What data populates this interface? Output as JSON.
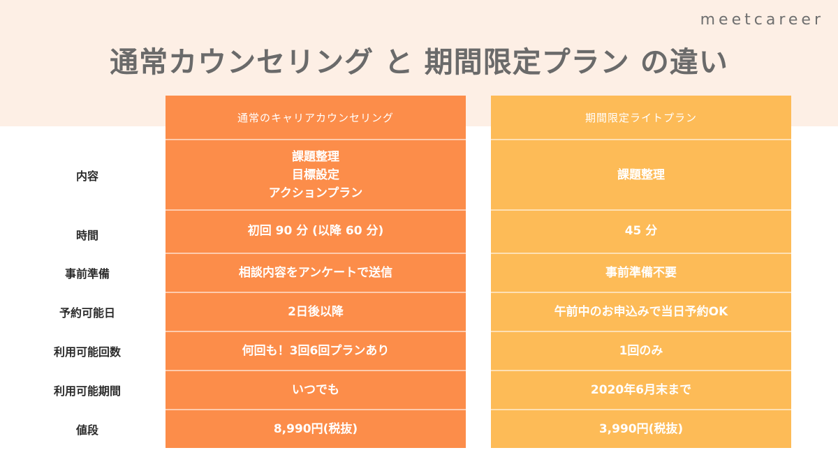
{
  "brand": "meetcareer",
  "title": "通常カウンセリング と 期間限定プラン の違い",
  "columns": {
    "normal": {
      "header": "通常のキャリアカウンセリング",
      "content": [
        "課題整理",
        "目標設定",
        "アクションプラン"
      ],
      "time": "初回 90 分 (以降 60 分)",
      "preparation": "相談内容をアンケートで送信",
      "booking_day": "2日後以降",
      "usage_count": "何回も！3回6回プランあり",
      "usage_period": "いつでも",
      "price": "8,990円(税抜)"
    },
    "limited": {
      "header": "期間限定ライトプラン",
      "content": [
        "課題整理"
      ],
      "time": "45 分",
      "preparation": "事前準備不要",
      "booking_day": "午前中のお申込みで当日予約OK",
      "usage_count": "1回のみ",
      "usage_period": "2020年6月末まで",
      "price": "3,990円(税抜)"
    }
  },
  "row_labels": {
    "content": "内容",
    "time": "時間",
    "preparation": "事前準備",
    "booking_day": "予約可能日",
    "usage_count": "利用可能回数",
    "usage_period": "利用可能期間",
    "price": "値段"
  },
  "colors": {
    "top_band": "#fdefe5",
    "normal_column": "#fc8d4a",
    "limited_column": "#fdbb57",
    "title_text": "#6a6a6a"
  }
}
